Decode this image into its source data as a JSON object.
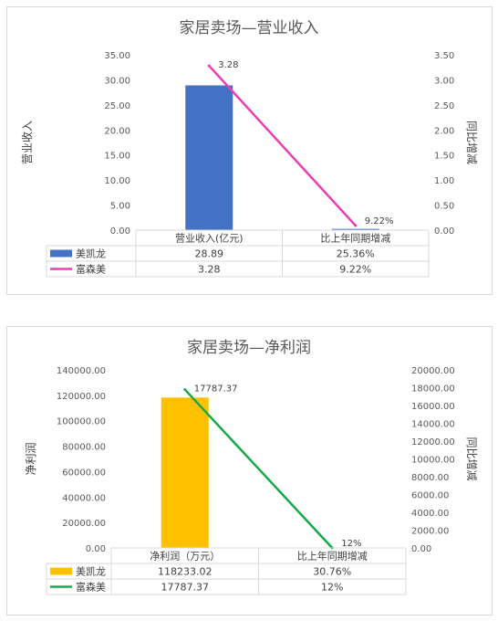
{
  "chart_data": [
    {
      "type": "bar+line",
      "title": "家居卖场—营业收入",
      "ylabel": "营业收入",
      "y2label": "同比增减",
      "ylim": [
        0,
        35
      ],
      "y2lim": [
        0,
        3.5
      ],
      "yticks": [
        "0.00",
        "5.00",
        "10.00",
        "15.00",
        "20.00",
        "25.00",
        "30.00",
        "35.00"
      ],
      "y2ticks": [
        "0.00",
        "0.50",
        "1.00",
        "1.50",
        "2.00",
        "2.50",
        "3.00",
        "3.50"
      ],
      "categories": [
        "营业收入(亿元)",
        "比上年同期增减"
      ],
      "series": [
        {
          "name": "美凯龙",
          "kind": "bar",
          "axis": "left",
          "color": "#4472C4",
          "values": [
            28.89,
            0.2536
          ],
          "cell_labels": [
            "28.89",
            "25.36%"
          ]
        },
        {
          "name": "富森美",
          "kind": "line",
          "axis": "right",
          "color": "#E83FB6",
          "values": [
            3.28,
            0.0922
          ],
          "cell_labels": [
            "3.28",
            "9.22%"
          ],
          "data_labels": [
            "3.28",
            "9.22%"
          ]
        }
      ],
      "grid": false,
      "legend": "table-bottom"
    },
    {
      "type": "bar+line",
      "title": "家居卖场—净利润",
      "ylabel": "净利润",
      "y2label": "同比增减",
      "ylim": [
        0,
        140000
      ],
      "y2lim": [
        0,
        20000
      ],
      "yticks": [
        "0.00",
        "20000.00",
        "40000.00",
        "60000.00",
        "80000.00",
        "100000.00",
        "120000.00",
        "140000.00"
      ],
      "y2ticks": [
        "0.00",
        "2000.00",
        "4000.00",
        "6000.00",
        "8000.00",
        "10000.00",
        "12000.00",
        "14000.00",
        "16000.00",
        "18000.00",
        "20000.00"
      ],
      "categories": [
        "净利润（万元）",
        "比上年同期增减"
      ],
      "series": [
        {
          "name": "美凯龙",
          "kind": "bar",
          "axis": "left",
          "color": "#FFC000",
          "values": [
            118233.02,
            0.3076
          ],
          "cell_labels": [
            "118233.02",
            "30.76%"
          ]
        },
        {
          "name": "富森美",
          "kind": "line",
          "axis": "right",
          "color": "#18A84A",
          "values": [
            17787.37,
            0.12
          ],
          "cell_labels": [
            "17787.37",
            "12%"
          ],
          "data_labels": [
            "17787.37",
            "12%"
          ]
        }
      ],
      "grid": false,
      "legend": "table-bottom"
    }
  ]
}
